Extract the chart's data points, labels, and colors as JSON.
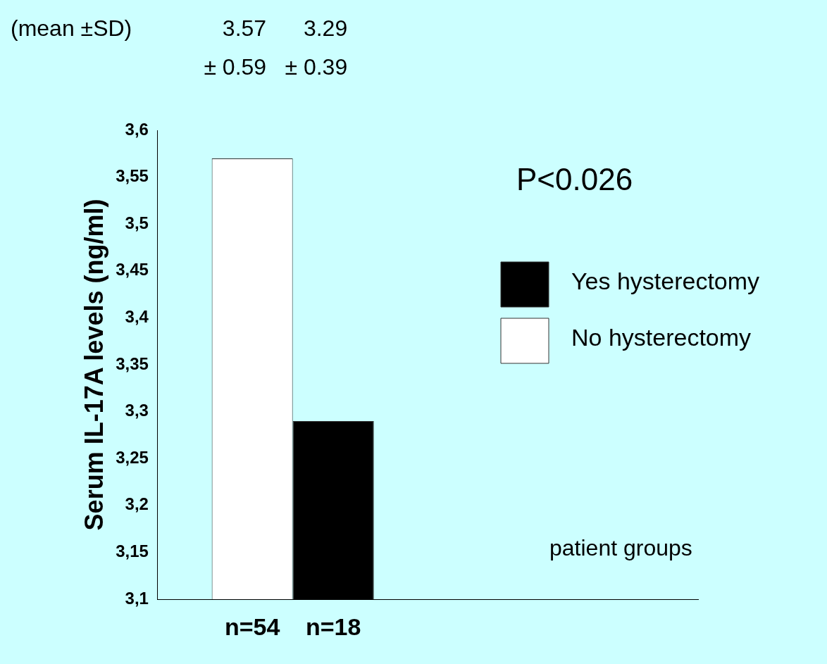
{
  "chart_data": {
    "type": "bar",
    "ylabel": "Serum IL-17A levels (ng/ml)",
    "xlabel": "patient groups",
    "categories": [
      null,
      null
    ],
    "series": [
      {
        "name": "No hysterectomy",
        "color": "#ffffff",
        "values": [
          3.57,
          null
        ]
      },
      {
        "name": "Yes hysterectomy",
        "color": "#000000",
        "values": [
          3.29,
          null
        ]
      }
    ],
    "ylim": [
      3.1,
      3.6
    ],
    "yticks": [
      {
        "value": 3.1,
        "label": "3,1"
      },
      {
        "value": 3.15,
        "label": "3,15"
      },
      {
        "value": 3.2,
        "label": "3,2"
      },
      {
        "value": 3.25,
        "label": "3,25"
      },
      {
        "value": 3.3,
        "label": "3,3"
      },
      {
        "value": 3.35,
        "label": "3,35"
      },
      {
        "value": 3.4,
        "label": "3,4"
      },
      {
        "value": 3.45,
        "label": "3,45"
      },
      {
        "value": 3.5,
        "label": "3,5"
      },
      {
        "value": 3.55,
        "label": "3,55"
      },
      {
        "value": 3.6,
        "label": "3,6"
      }
    ],
    "grid": false,
    "legend": "right",
    "annotations": [
      "(mean ±SD)",
      "3.57\n± 0.59",
      "3.29\n± 0.39",
      "P<0.026",
      "n=54",
      "n=18"
    ]
  }
}
